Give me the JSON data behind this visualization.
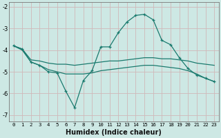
{
  "xlabel": "Humidex (Indice chaleur)",
  "bg_color": "#cde8e4",
  "grid_color": "#b0d8d2",
  "line_color": "#1a7a6e",
  "xlim": [
    -0.5,
    23.5
  ],
  "ylim": [
    -7.3,
    -1.8
  ],
  "yticks": [
    -7,
    -6,
    -5,
    -4,
    -3,
    -2
  ],
  "xticks": [
    0,
    1,
    2,
    3,
    4,
    5,
    6,
    7,
    8,
    9,
    10,
    11,
    12,
    13,
    14,
    15,
    16,
    17,
    18,
    19,
    20,
    21,
    22,
    23
  ],
  "line_upper_x": [
    0,
    1,
    2,
    3,
    4,
    5,
    6,
    7,
    8,
    9,
    10,
    11,
    12,
    13,
    14,
    15,
    16,
    17,
    18,
    19,
    20,
    21,
    22,
    23
  ],
  "line_upper_y": [
    -3.8,
    -3.95,
    -4.45,
    -4.5,
    -4.6,
    -4.65,
    -4.65,
    -4.7,
    -4.65,
    -4.6,
    -4.55,
    -4.5,
    -4.5,
    -4.45,
    -4.4,
    -4.35,
    -4.35,
    -4.4,
    -4.4,
    -4.45,
    -4.5,
    -4.6,
    -4.65,
    -4.7
  ],
  "line_lower_x": [
    0,
    1,
    2,
    3,
    4,
    5,
    6,
    7,
    8,
    9,
    10,
    11,
    12,
    13,
    14,
    15,
    16,
    17,
    18,
    19,
    20,
    21,
    22,
    23
  ],
  "line_lower_y": [
    -3.8,
    -4.0,
    -4.55,
    -4.7,
    -4.9,
    -5.0,
    -5.1,
    -5.1,
    -5.1,
    -5.05,
    -4.95,
    -4.9,
    -4.85,
    -4.8,
    -4.75,
    -4.7,
    -4.7,
    -4.75,
    -4.8,
    -4.85,
    -4.95,
    -5.1,
    -5.3,
    -5.45
  ],
  "line_spiky_x": [
    0,
    1,
    2,
    3,
    4,
    5,
    6,
    7,
    8,
    9,
    10,
    11,
    12,
    13,
    14,
    15,
    16,
    17,
    18,
    19,
    20,
    21,
    22,
    23
  ],
  "line_spiky_y": [
    -3.8,
    -3.95,
    -4.55,
    -4.7,
    -5.0,
    -5.05,
    -5.9,
    -6.65,
    -5.4,
    -4.95,
    -3.85,
    -3.85,
    -3.2,
    -2.7,
    -2.4,
    -2.35,
    -2.6,
    -3.55,
    -3.75,
    -4.35,
    -4.85,
    -5.15,
    -5.3,
    -5.45
  ]
}
